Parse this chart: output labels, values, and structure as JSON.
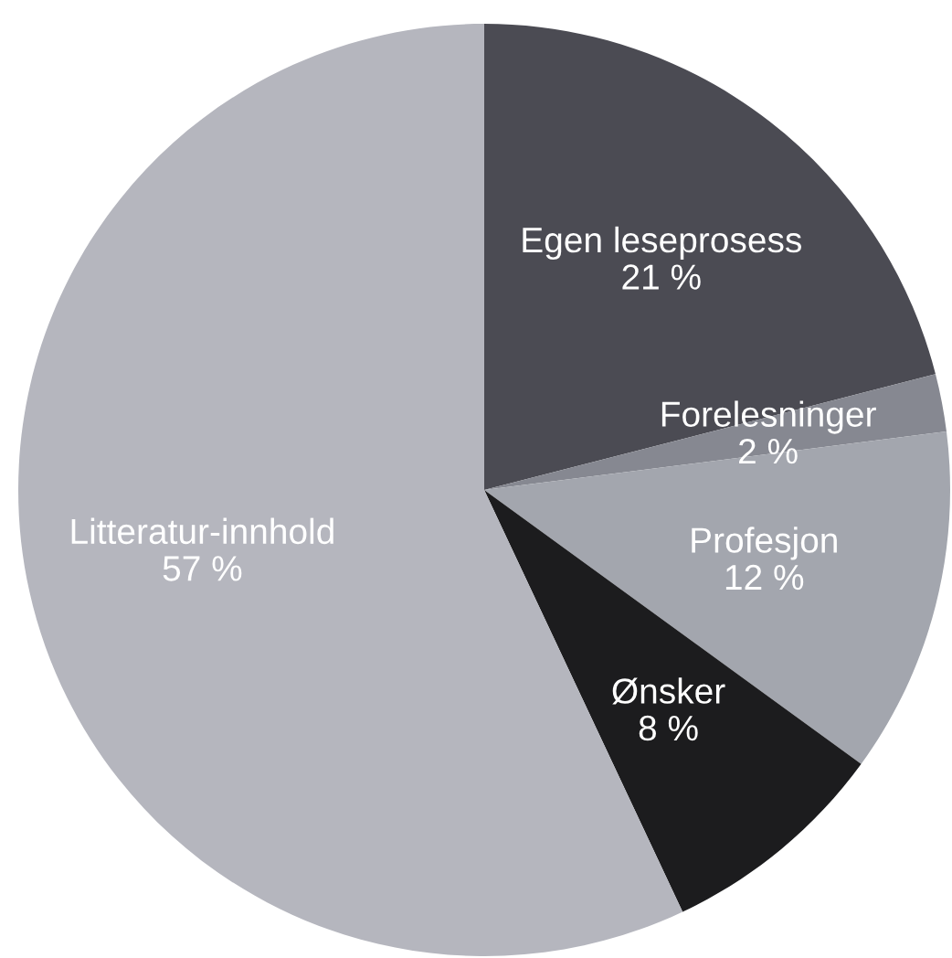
{
  "chart_data": {
    "type": "pie",
    "categories": [
      "Egen leseprosess",
      "Forelesninger",
      "Profesjon",
      "Ønsker",
      "Litteratur-innhold"
    ],
    "values": [
      21,
      2,
      12,
      8,
      57
    ],
    "colors": [
      "#4b4b53",
      "#868891",
      "#a3a6ae",
      "#1c1c1e",
      "#b5b6be"
    ],
    "value_labels": [
      "21 %",
      "2 %",
      "12 %",
      "8 %",
      "57 %"
    ],
    "legend": false
  }
}
